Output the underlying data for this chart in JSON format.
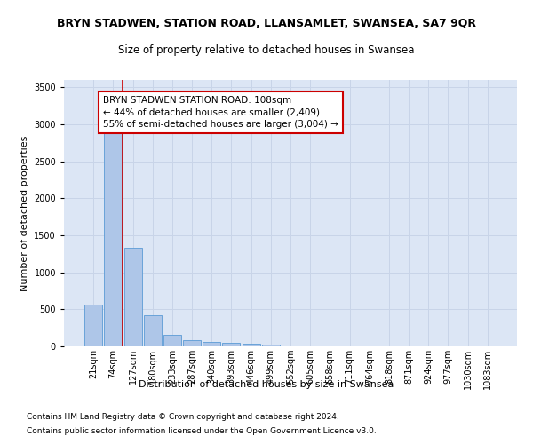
{
  "title": "BRYN STADWEN, STATION ROAD, LLANSAMLET, SWANSEA, SA7 9QR",
  "subtitle": "Size of property relative to detached houses in Swansea",
  "xlabel": "Distribution of detached houses by size in Swansea",
  "ylabel": "Number of detached properties",
  "footer1": "Contains HM Land Registry data © Crown copyright and database right 2024.",
  "footer2": "Contains public sector information licensed under the Open Government Licence v3.0.",
  "bin_labels": [
    "21sqm",
    "74sqm",
    "127sqm",
    "180sqm",
    "233sqm",
    "287sqm",
    "340sqm",
    "393sqm",
    "446sqm",
    "499sqm",
    "552sqm",
    "605sqm",
    "658sqm",
    "711sqm",
    "764sqm",
    "818sqm",
    "871sqm",
    "924sqm",
    "977sqm",
    "1030sqm",
    "1083sqm"
  ],
  "bar_values": [
    570,
    2900,
    1330,
    420,
    160,
    80,
    55,
    45,
    40,
    30,
    5,
    3,
    2,
    1,
    1,
    0,
    0,
    0,
    0,
    0,
    0
  ],
  "bar_color": "#aec6e8",
  "bar_edge_color": "#5b9bd5",
  "grid_color": "#c8d4e8",
  "background_color": "#dce6f5",
  "red_line_x": 1.5,
  "annotation_text_line1": "BRYN STADWEN STATION ROAD: 108sqm",
  "annotation_text_line2": "← 44% of detached houses are smaller (2,409)",
  "annotation_text_line3": "55% of semi-detached houses are larger (3,004) →",
  "annotation_box_color": "#ffffff",
  "annotation_border_color": "#cc0000",
  "ylim": [
    0,
    3600
  ],
  "yticks": [
    0,
    500,
    1000,
    1500,
    2000,
    2500,
    3000,
    3500
  ],
  "title_fontsize": 9,
  "subtitle_fontsize": 8.5,
  "axis_label_fontsize": 8,
  "tick_fontsize": 7,
  "annotation_fontsize": 7.5,
  "footer_fontsize": 6.5
}
